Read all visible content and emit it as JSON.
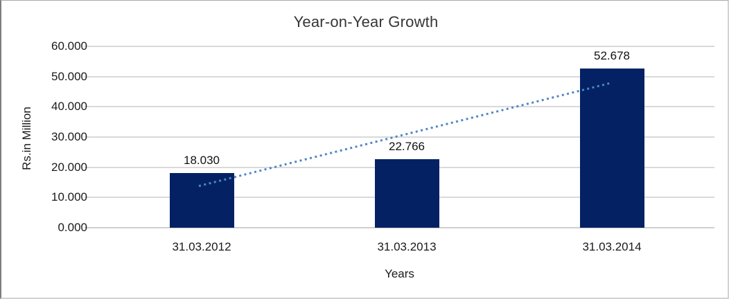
{
  "chart_data": {
    "type": "bar",
    "title": "Year-on-Year Growth",
    "xlabel": "Years",
    "ylabel": "Rs.in Million",
    "categories": [
      "31.03.2012",
      "31.03.2013",
      "31.03.2014"
    ],
    "values": [
      18.03,
      22.766,
      52.678
    ],
    "data_labels": [
      "18.030",
      "22.766",
      "52.678"
    ],
    "ylim": [
      0,
      60
    ],
    "ytick_values": [
      0,
      10,
      20,
      30,
      40,
      50,
      60
    ],
    "ytick_labels": [
      "0.000",
      "10.000",
      "20.000",
      "30.000",
      "40.000",
      "50.000",
      "60.000"
    ],
    "grid": true,
    "legend_position": "none",
    "bar_color": "#042163",
    "trendline": {
      "type": "linear",
      "style": "dotted",
      "color": "#4f86c6",
      "start_value": 13.8,
      "end_value": 47.8
    }
  }
}
